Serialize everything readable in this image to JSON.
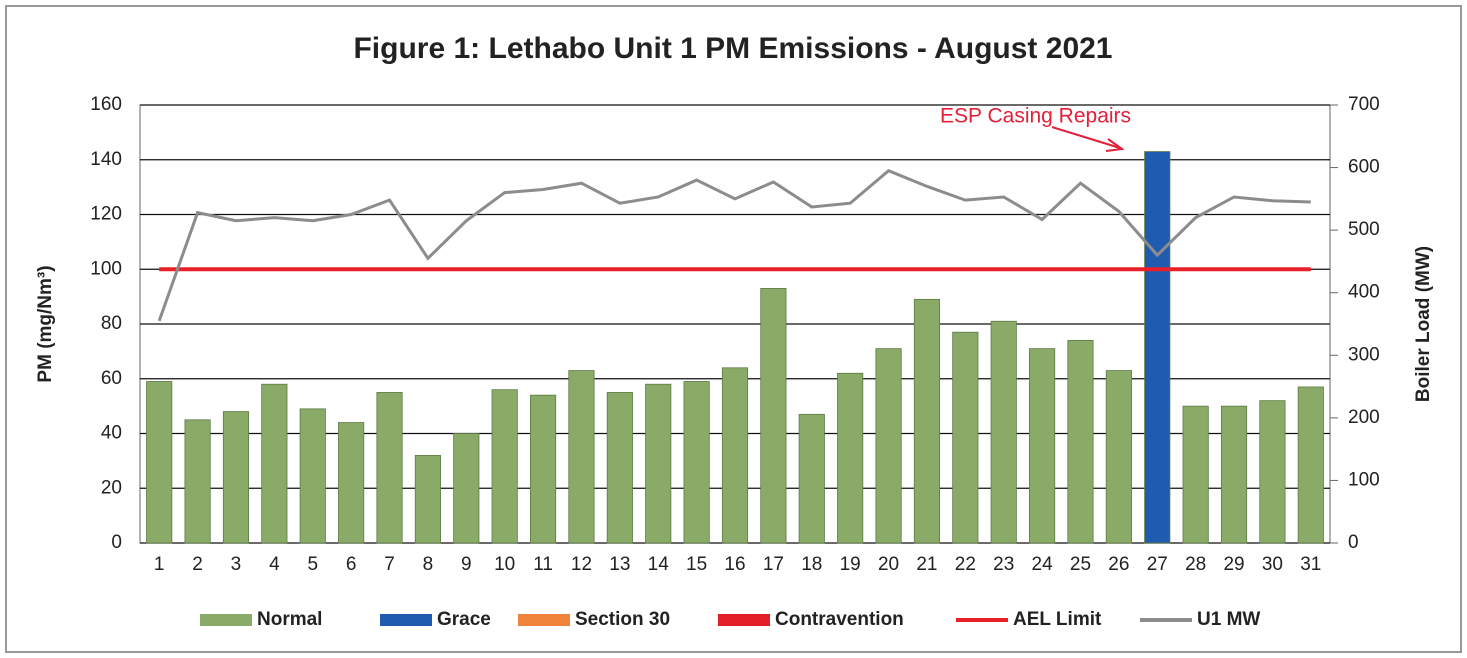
{
  "chart_data": {
    "type": "combo",
    "title": "Figure 1: Lethabo Unit 1 PM Emissions -  August 2021",
    "y_label": "PM (mg/Nm³)",
    "y2_label": "Boiler Load (MW)",
    "annotation": "ESP Casing Repairs",
    "categories": [
      "1",
      "2",
      "3",
      "4",
      "5",
      "6",
      "7",
      "8",
      "9",
      "10",
      "11",
      "12",
      "13",
      "14",
      "15",
      "16",
      "17",
      "18",
      "19",
      "20",
      "21",
      "22",
      "23",
      "24",
      "25",
      "26",
      "27",
      "28",
      "29",
      "30",
      "31"
    ],
    "ylim": [
      0,
      160
    ],
    "yticks": [
      0,
      20,
      40,
      60,
      80,
      100,
      120,
      140,
      160
    ],
    "y2lim": [
      0,
      700
    ],
    "y2ticks": [
      0,
      100,
      200,
      300,
      400,
      500,
      600,
      700
    ],
    "grid": true,
    "legend": "bottom",
    "series": [
      {
        "name": "Normal",
        "type": "bar",
        "color": "#8aab68",
        "values": [
          59,
          45,
          48,
          58,
          49,
          44,
          55,
          32,
          40,
          56,
          54,
          63,
          55,
          58,
          59,
          64,
          93,
          47,
          62,
          71,
          89,
          77,
          81,
          71,
          74,
          63,
          null,
          50,
          50,
          52,
          57
        ]
      },
      {
        "name": "Grace",
        "type": "bar",
        "color": "#1f5cb0",
        "values": [
          null,
          null,
          null,
          null,
          null,
          null,
          null,
          null,
          null,
          null,
          null,
          null,
          null,
          null,
          null,
          null,
          null,
          null,
          null,
          null,
          null,
          null,
          null,
          null,
          null,
          null,
          143,
          null,
          null,
          null,
          null
        ]
      },
      {
        "name": "Section 30",
        "type": "bar",
        "color": "#f0843a",
        "values": [
          null,
          null,
          null,
          null,
          null,
          null,
          null,
          null,
          null,
          null,
          null,
          null,
          null,
          null,
          null,
          null,
          null,
          null,
          null,
          null,
          null,
          null,
          null,
          null,
          null,
          null,
          null,
          null,
          null,
          null,
          null
        ]
      },
      {
        "name": "Contravention",
        "type": "bar",
        "color": "#e3202a",
        "values": [
          null,
          null,
          null,
          null,
          null,
          null,
          null,
          null,
          null,
          null,
          null,
          null,
          null,
          null,
          null,
          null,
          null,
          null,
          null,
          null,
          null,
          null,
          null,
          null,
          null,
          null,
          null,
          null,
          null,
          null,
          null
        ]
      },
      {
        "name": "AEL Limit",
        "type": "line",
        "color": "#e8202a",
        "values": [
          100,
          100,
          100,
          100,
          100,
          100,
          100,
          100,
          100,
          100,
          100,
          100,
          100,
          100,
          100,
          100,
          100,
          100,
          100,
          100,
          100,
          100,
          100,
          100,
          100,
          100,
          100,
          100,
          100,
          100,
          100
        ]
      },
      {
        "name": "U1 MW",
        "type": "line",
        "axis": "y2",
        "color": "#8c8c8c",
        "values": [
          355,
          528,
          515,
          520,
          515,
          525,
          548,
          455,
          515,
          560,
          565,
          575,
          543,
          553,
          580,
          550,
          577,
          537,
          543,
          595,
          570,
          548,
          553,
          517,
          575,
          530,
          460,
          520,
          553,
          547,
          545
        ]
      }
    ]
  }
}
